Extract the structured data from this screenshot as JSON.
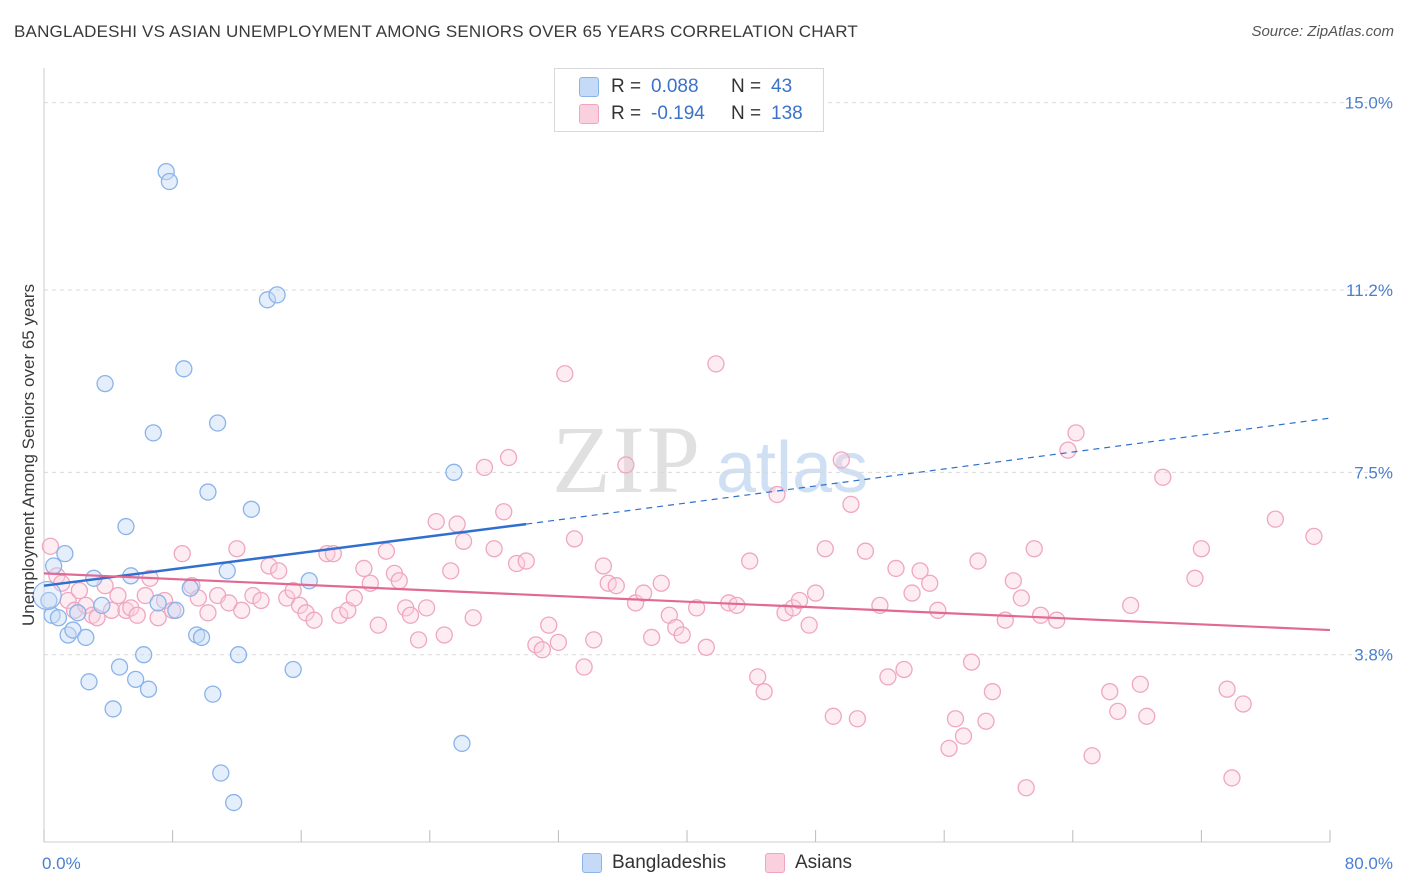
{
  "header": {
    "title": "BANGLADESHI VS ASIAN UNEMPLOYMENT AMONG SENIORS OVER 65 YEARS CORRELATION CHART",
    "source": "Source: ZipAtlas.com"
  },
  "watermark": {
    "zip": "ZIP",
    "atlas": "atlas"
  },
  "legend": {
    "rows": [
      {
        "r_label": "R =",
        "r_value": "0.088",
        "n_label": "N =",
        "n_value": "43",
        "color": "#8ab3ea"
      },
      {
        "r_label": "R =",
        "r_value": "-0.194",
        "n_label": "N =",
        "n_value": "138",
        "color": "#f0a6bf"
      }
    ],
    "bottom": [
      "Bangladeshis",
      "Asians"
    ]
  },
  "chart_data": {
    "type": "scatter",
    "title": "BANGLADESHI VS ASIAN UNEMPLOYMENT AMONG SENIORS OVER 65 YEARS CORRELATION CHART",
    "ylabel": "Unemployment Among Seniors over 65 years",
    "xlabel": "",
    "xlim": [
      0,
      80
    ],
    "ylim": [
      0,
      15.5
    ],
    "x_tick_labels": [
      "0.0%",
      "80.0%"
    ],
    "y_ticks": [
      3.8,
      7.5,
      11.2,
      15.0
    ],
    "y_tick_labels": [
      "3.8%",
      "7.5%",
      "11.2%",
      "15.0%"
    ],
    "grid": true,
    "legend_position": "top-center",
    "series": [
      {
        "name": "Bangladeshis",
        "color": "#8ab3ea",
        "line_color": "#2f6fd0",
        "trend": {
          "x0": 0,
          "y0": 5.2,
          "x1": 30,
          "y1": 6.45,
          "x_dash_end": 80,
          "y_dash_end": 8.6
        },
        "points": [
          [
            0.3,
            4.9
          ],
          [
            0.5,
            4.6
          ],
          [
            0.9,
            4.55
          ],
          [
            1.3,
            5.85
          ],
          [
            1.5,
            4.2
          ],
          [
            1.8,
            4.3
          ],
          [
            2.1,
            4.65
          ],
          [
            2.6,
            4.15
          ],
          [
            2.8,
            3.25
          ],
          [
            3.1,
            5.35
          ],
          [
            3.6,
            4.8
          ],
          [
            3.8,
            9.3
          ],
          [
            4.3,
            2.7
          ],
          [
            4.7,
            3.55
          ],
          [
            5.1,
            6.4
          ],
          [
            5.4,
            5.4
          ],
          [
            5.7,
            3.3
          ],
          [
            6.2,
            3.8
          ],
          [
            6.5,
            3.1
          ],
          [
            6.8,
            8.3
          ],
          [
            7.1,
            4.85
          ],
          [
            7.6,
            13.6
          ],
          [
            7.8,
            13.4
          ],
          [
            8.2,
            4.7
          ],
          [
            8.7,
            9.6
          ],
          [
            9.1,
            5.15
          ],
          [
            9.5,
            4.2
          ],
          [
            9.8,
            4.15
          ],
          [
            10.2,
            7.1
          ],
          [
            10.5,
            3.0
          ],
          [
            10.8,
            8.5
          ],
          [
            11.0,
            1.4
          ],
          [
            11.4,
            5.5
          ],
          [
            11.8,
            0.8
          ],
          [
            12.1,
            3.8
          ],
          [
            12.9,
            6.75
          ],
          [
            13.9,
            11.0
          ],
          [
            14.5,
            11.1
          ],
          [
            15.5,
            3.5
          ],
          [
            16.5,
            5.3
          ],
          [
            25.5,
            7.5
          ],
          [
            26.0,
            2.0
          ],
          [
            0.6,
            5.6
          ]
        ]
      },
      {
        "name": "Asians",
        "color": "#f0a6bf",
        "line_color": "#e06a94",
        "trend": {
          "x0": 0,
          "y0": 5.45,
          "x1": 80,
          "y1": 4.3
        },
        "points": [
          [
            0.4,
            6.0
          ],
          [
            0.8,
            5.4
          ],
          [
            1.1,
            5.25
          ],
          [
            1.5,
            4.9
          ],
          [
            1.9,
            4.7
          ],
          [
            2.2,
            5.1
          ],
          [
            2.6,
            4.8
          ],
          [
            3.0,
            4.6
          ],
          [
            3.3,
            4.55
          ],
          [
            3.8,
            5.2
          ],
          [
            4.2,
            4.7
          ],
          [
            4.6,
            5.0
          ],
          [
            5.1,
            4.7
          ],
          [
            5.4,
            4.75
          ],
          [
            5.8,
            4.6
          ],
          [
            6.3,
            5.0
          ],
          [
            6.6,
            5.35
          ],
          [
            7.1,
            4.55
          ],
          [
            7.5,
            4.9
          ],
          [
            8.0,
            4.7
          ],
          [
            8.6,
            5.85
          ],
          [
            9.2,
            5.2
          ],
          [
            9.6,
            4.95
          ],
          [
            10.2,
            4.65
          ],
          [
            10.8,
            5.0
          ],
          [
            11.5,
            4.85
          ],
          [
            12.0,
            5.95
          ],
          [
            12.3,
            4.7
          ],
          [
            13.0,
            5.0
          ],
          [
            13.5,
            4.9
          ],
          [
            14.0,
            5.6
          ],
          [
            14.6,
            5.5
          ],
          [
            15.1,
            4.95
          ],
          [
            15.5,
            5.1
          ],
          [
            15.9,
            4.8
          ],
          [
            16.3,
            4.65
          ],
          [
            16.8,
            4.5
          ],
          [
            17.6,
            5.85
          ],
          [
            18.0,
            5.85
          ],
          [
            18.4,
            4.6
          ],
          [
            18.9,
            4.7
          ],
          [
            19.3,
            4.95
          ],
          [
            19.9,
            5.55
          ],
          [
            20.3,
            5.25
          ],
          [
            20.8,
            4.4
          ],
          [
            21.3,
            5.9
          ],
          [
            21.8,
            5.45
          ],
          [
            22.1,
            5.3
          ],
          [
            22.5,
            4.75
          ],
          [
            22.8,
            4.6
          ],
          [
            23.3,
            4.1
          ],
          [
            23.8,
            4.75
          ],
          [
            24.4,
            6.5
          ],
          [
            24.9,
            4.2
          ],
          [
            25.3,
            5.5
          ],
          [
            25.7,
            6.45
          ],
          [
            26.1,
            6.1
          ],
          [
            26.7,
            4.55
          ],
          [
            27.4,
            7.6
          ],
          [
            28.0,
            5.95
          ],
          [
            28.6,
            6.7
          ],
          [
            28.9,
            7.8
          ],
          [
            29.4,
            5.65
          ],
          [
            30.0,
            5.7
          ],
          [
            30.6,
            4.0
          ],
          [
            31.0,
            3.9
          ],
          [
            31.4,
            4.4
          ],
          [
            32.0,
            4.05
          ],
          [
            32.4,
            9.5
          ],
          [
            33.0,
            6.15
          ],
          [
            33.6,
            3.55
          ],
          [
            34.2,
            4.1
          ],
          [
            34.8,
            5.6
          ],
          [
            35.1,
            5.25
          ],
          [
            35.6,
            5.2
          ],
          [
            36.2,
            7.65
          ],
          [
            36.8,
            4.85
          ],
          [
            37.3,
            5.05
          ],
          [
            37.8,
            4.15
          ],
          [
            38.4,
            5.25
          ],
          [
            38.9,
            4.6
          ],
          [
            39.3,
            4.35
          ],
          [
            39.7,
            4.2
          ],
          [
            40.6,
            4.75
          ],
          [
            41.2,
            3.95
          ],
          [
            41.8,
            9.7
          ],
          [
            42.6,
            4.85
          ],
          [
            43.1,
            4.8
          ],
          [
            43.9,
            5.7
          ],
          [
            44.4,
            3.35
          ],
          [
            44.8,
            3.05
          ],
          [
            45.6,
            7.05
          ],
          [
            46.1,
            4.65
          ],
          [
            46.6,
            4.75
          ],
          [
            47.0,
            4.9
          ],
          [
            47.6,
            4.4
          ],
          [
            48.0,
            5.05
          ],
          [
            48.6,
            5.95
          ],
          [
            49.1,
            2.55
          ],
          [
            49.6,
            7.75
          ],
          [
            50.2,
            6.85
          ],
          [
            50.6,
            2.5
          ],
          [
            51.1,
            5.9
          ],
          [
            52.0,
            4.8
          ],
          [
            52.5,
            3.35
          ],
          [
            53.0,
            5.55
          ],
          [
            53.5,
            3.5
          ],
          [
            54.0,
            5.05
          ],
          [
            54.5,
            5.5
          ],
          [
            55.1,
            5.25
          ],
          [
            55.6,
            4.7
          ],
          [
            56.3,
            1.9
          ],
          [
            56.7,
            2.5
          ],
          [
            57.2,
            2.15
          ],
          [
            57.7,
            3.65
          ],
          [
            58.1,
            5.7
          ],
          [
            58.6,
            2.45
          ],
          [
            59.0,
            3.05
          ],
          [
            59.8,
            4.5
          ],
          [
            60.3,
            5.3
          ],
          [
            60.8,
            4.95
          ],
          [
            61.1,
            1.1
          ],
          [
            61.6,
            5.95
          ],
          [
            62.0,
            4.6
          ],
          [
            63.0,
            4.5
          ],
          [
            63.7,
            7.95
          ],
          [
            64.2,
            8.3
          ],
          [
            65.2,
            1.75
          ],
          [
            66.3,
            3.05
          ],
          [
            66.8,
            2.65
          ],
          [
            67.6,
            4.8
          ],
          [
            68.2,
            3.2
          ],
          [
            68.6,
            2.55
          ],
          [
            69.6,
            7.4
          ],
          [
            71.6,
            5.35
          ],
          [
            72.0,
            5.95
          ],
          [
            73.6,
            3.1
          ],
          [
            73.9,
            1.3
          ],
          [
            74.6,
            2.8
          ],
          [
            76.6,
            6.55
          ],
          [
            79.0,
            6.2
          ]
        ]
      }
    ]
  }
}
